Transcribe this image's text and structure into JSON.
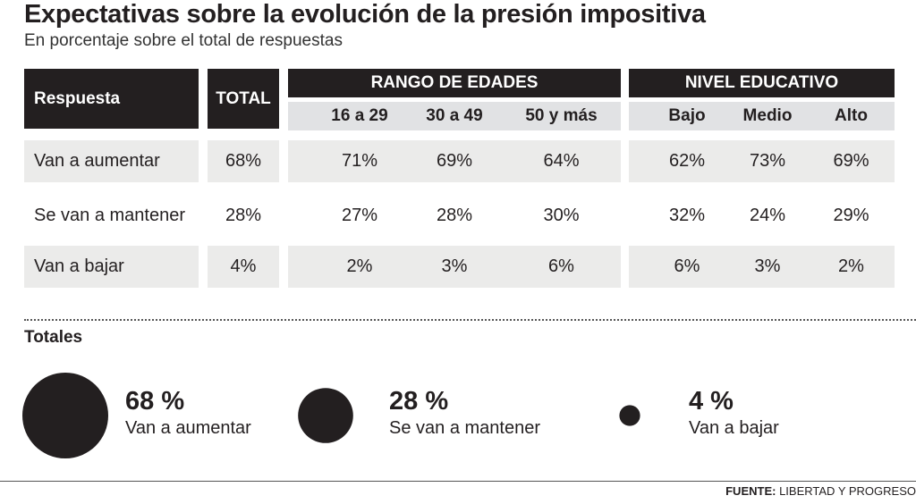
{
  "title": "Expectativas sobre la evolución de la presión impositiva",
  "subtitle": "En porcentaje sobre el total de respuestas",
  "table": {
    "h_respuesta": "Respuesta",
    "h_total": "TOTAL",
    "h_edades": "RANGO DE EDADES",
    "h_nivel": "NIVEL EDUCATIVO",
    "sub_cols": [
      "16 a 29",
      "30 a 49",
      "50 y más",
      "Bajo",
      "Medio",
      "Alto"
    ],
    "rows": [
      {
        "label": "Van a aumentar",
        "total": "68%",
        "vals": [
          "71%",
          "69%",
          "64%",
          "62%",
          "73%",
          "69%"
        ]
      },
      {
        "label": "Se van a mantener",
        "total": "28%",
        "vals": [
          "27%",
          "28%",
          "30%",
          "32%",
          "24%",
          "29%"
        ]
      },
      {
        "label": "Van a bajar",
        "total": "4%",
        "vals": [
          "2%",
          "3%",
          "6%",
          "6%",
          "3%",
          "2%"
        ]
      }
    ]
  },
  "totales_label": "Totales",
  "bubble_color": "#231f20",
  "chart_data": {
    "type": "bubble",
    "categories": [
      "Van a aumentar",
      "Se van a mantener",
      "Van a bajar"
    ],
    "values": [
      68,
      28,
      4
    ],
    "value_labels": [
      "68 %",
      "28 %",
      "4 %"
    ],
    "title": "Totales"
  },
  "source": {
    "label": "FUENTE:",
    "text": "LIBERTAD Y PROGRESO"
  }
}
